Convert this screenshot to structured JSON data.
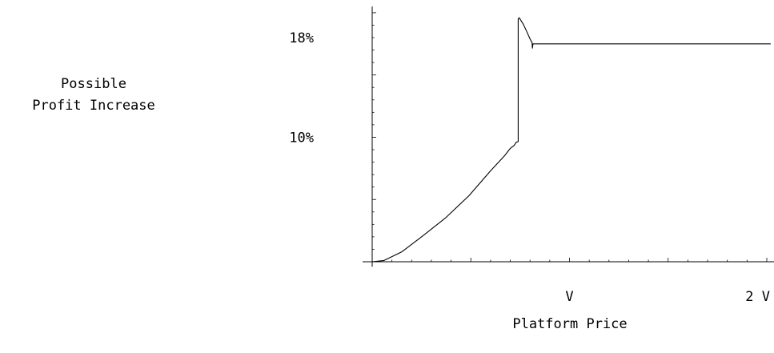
{
  "chart_data": {
    "type": "line",
    "title": "",
    "xlabel": "Platform Price",
    "ylabel_lines": [
      "Possible",
      "Profit Increase"
    ],
    "x_ticks": [
      {
        "value": 1,
        "label": "V"
      },
      {
        "value": 2,
        "label": "2 V"
      }
    ],
    "y_ticks": [
      {
        "value": 10,
        "label": "10%"
      },
      {
        "value": 18,
        "label": "18%"
      }
    ],
    "xlim": [
      0,
      2.02
    ],
    "ylim": [
      -0.4,
      20.5
    ],
    "grid": false,
    "series": [
      {
        "x": [
          0,
          0.06,
          0.15,
          0.25,
          0.37,
          0.49,
          0.6,
          0.67,
          0.7,
          0.72,
          0.73,
          0.74,
          0.74,
          0.745,
          0.765,
          0.78,
          0.8,
          0.81,
          0.812,
          0.815,
          0.83,
          1.0,
          1.5,
          2.02
        ],
        "y": [
          0,
          0.1,
          0.8,
          2.0,
          3.5,
          5.3,
          7.3,
          8.5,
          9.1,
          9.35,
          9.6,
          9.65,
          19.5,
          19.6,
          19.1,
          18.6,
          17.9,
          17.6,
          17.15,
          17.5,
          17.5,
          17.5,
          17.5,
          17.5
        ]
      }
    ]
  }
}
